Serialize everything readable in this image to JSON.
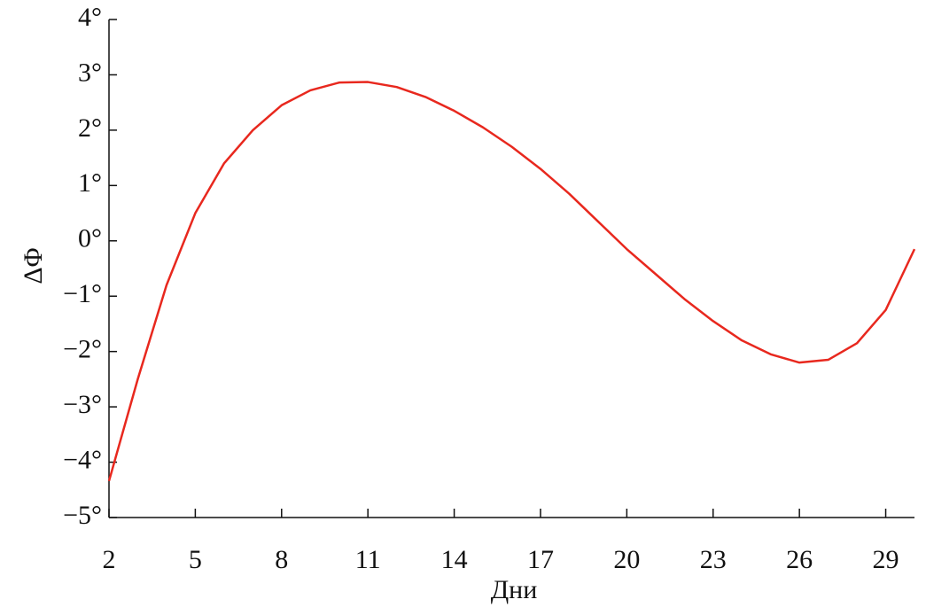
{
  "chart_data": {
    "type": "line",
    "xlabel": "Дни",
    "ylabel": "ΔΦ",
    "x": [
      2,
      3,
      4,
      5,
      6,
      7,
      8,
      9,
      10,
      11,
      12,
      13,
      14,
      15,
      16,
      17,
      18,
      19,
      20,
      21,
      22,
      23,
      24,
      25,
      26,
      27,
      28,
      29,
      30
    ],
    "series": [
      {
        "color": "#e8281e",
        "values": [
          -4.34,
          -2.5,
          -0.8,
          0.5,
          1.4,
          2.0,
          2.45,
          2.72,
          2.86,
          2.87,
          2.78,
          2.6,
          2.35,
          2.05,
          1.7,
          1.3,
          0.85,
          0.35,
          -0.15,
          -0.6,
          -1.05,
          -1.45,
          -1.8,
          -2.05,
          -2.2,
          -2.15,
          -1.85,
          -1.25,
          -0.15
        ]
      }
    ],
    "xlim": [
      2,
      30
    ],
    "xticks": [
      2,
      5,
      8,
      11,
      14,
      17,
      20,
      23,
      26,
      29
    ],
    "ylim": [
      -5,
      4
    ],
    "yticks": [
      {
        "value": -5,
        "label": "−5°"
      },
      {
        "value": -4,
        "label": "−4°"
      },
      {
        "value": -3,
        "label": "−3°"
      },
      {
        "value": -2,
        "label": "−2°"
      },
      {
        "value": -1,
        "label": "−1°"
      },
      {
        "value": 0,
        "label": "0°"
      },
      {
        "value": 1,
        "label": "1°"
      },
      {
        "value": 2,
        "label": "2°"
      },
      {
        "value": 3,
        "label": "3°"
      },
      {
        "value": 4,
        "label": "4°"
      }
    ],
    "grid": false
  }
}
